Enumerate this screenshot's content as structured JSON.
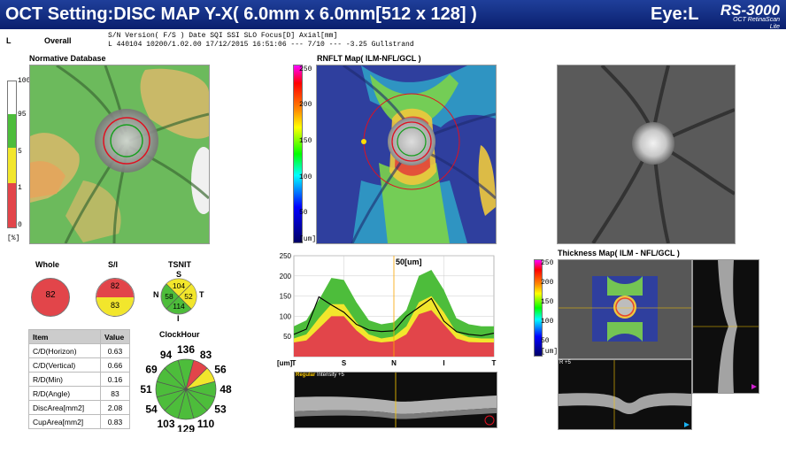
{
  "header": {
    "title": "OCT Setting:DISC MAP Y-X( 6.0mm x 6.0mm[512 x 128] )",
    "eye": "Eye:L",
    "logo_main": "RS-3000",
    "logo_sub": "OCT RetinaScan",
    "logo_sub2": "Lite"
  },
  "infobar": {
    "eye_letter": "L",
    "overall": "Overall",
    "row1": "S/N     Version( F/S )  Date                SQI   SSI    SLO   Focus[D]  Axial[mm]",
    "row2": "L  440104  10200/1.02.00  17/12/2015 16:51:06  ---   7/10   ---   -3.25     Gullstrand"
  },
  "normative": {
    "label": "Normative Database",
    "scale_ticks": [
      "100",
      "95",
      "5",
      "1",
      "0"
    ],
    "unit": "[%]",
    "colors": {
      "white": "#ffffff",
      "green": "#4dbd3b",
      "yellow": "#f2e62c",
      "red": "#e2454a"
    }
  },
  "rnflt_map": {
    "label": "RNFLT Map( ILM-NFL/GCL )",
    "scale_ticks": [
      "250",
      "200",
      "150",
      "100",
      "50"
    ],
    "unit": "[um]"
  },
  "summary": {
    "whole_label": "Whole",
    "whole_value": "82",
    "si_label": "S/I",
    "si_superior": "82",
    "si_inferior": "83",
    "tsnit_label": "TSNIT",
    "tsnit_S": "104",
    "tsnit_N": "58",
    "tsnit_T": "52",
    "tsnit_I": "114",
    "tsnit_letters": {
      "S": "S",
      "N": "N",
      "T": "T",
      "I": "I"
    }
  },
  "params_table": {
    "headers": [
      "Item",
      "Value"
    ],
    "rows": [
      [
        "C/D(Horizon)",
        "0.63"
      ],
      [
        "C/D(Vertical)",
        "0.66"
      ],
      [
        "R/D(Min)",
        "0.16"
      ],
      [
        "R/D(Angle)",
        "83"
      ],
      [
        "DiscArea[mm2]",
        "2.08"
      ],
      [
        "CupArea[mm2]",
        "0.83"
      ]
    ]
  },
  "clock_hour": {
    "label": "ClockHour",
    "values": [
      "136",
      "83",
      "56",
      "48",
      "53",
      "110",
      "129",
      "103",
      "54",
      "51",
      "69",
      "94"
    ],
    "sector_colors": [
      "#4dbd3b",
      "#e2454a",
      "#f2e62c",
      "#4dbd3b",
      "#4dbd3b",
      "#4dbd3b",
      "#4dbd3b",
      "#4dbd3b",
      "#4dbd3b",
      "#4dbd3b",
      "#4dbd3b",
      "#4dbd3b"
    ]
  },
  "chart_data": {
    "type": "area",
    "title": "",
    "marker_label": "50[um]",
    "ylim": [
      0,
      250
    ],
    "y_ticks": [
      50,
      100,
      150,
      200,
      250
    ],
    "ylabel": "[um]",
    "x_ticks": [
      "T",
      "S",
      "N",
      "I",
      "T"
    ],
    "x": [
      0,
      8,
      16,
      24,
      32,
      40,
      48,
      56,
      64,
      72,
      80,
      88,
      96,
      104,
      112,
      120,
      128
    ],
    "series": [
      {
        "name": "",
        "values": [
          75,
          90,
          140,
          195,
          190,
          135,
          90,
          80,
          85,
          115,
          200,
          215,
          165,
          95,
          80,
          75,
          75
        ]
      },
      {
        "name": "",
        "values": [
          45,
          55,
          95,
          130,
          130,
          85,
          55,
          45,
          50,
          75,
          135,
          150,
          110,
          60,
          48,
          45,
          45
        ]
      },
      {
        "name": "",
        "values": [
          35,
          40,
          70,
          100,
          100,
          65,
          40,
          35,
          38,
          55,
          105,
          115,
          80,
          45,
          36,
          35,
          35
        ]
      },
      {
        "name": "",
        "values": [
          55,
          68,
          148,
          128,
          110,
          80,
          66,
          62,
          64,
          100,
          122,
          144,
          88,
          62,
          55,
          52,
          58
        ]
      }
    ],
    "colors": [
      "#4dbd3b",
      "#f2e62c",
      "#e2454a",
      "#000000"
    ]
  },
  "bscan": {
    "label": "Regular",
    "intensity": "Intensity +5"
  },
  "thickness_map": {
    "label": "Thickness Map( ILM - NFL/GCL )",
    "scale_ticks": [
      "250",
      "200",
      "150",
      "100",
      "50"
    ],
    "unit": "[um]"
  },
  "rscan_label": "R +5"
}
